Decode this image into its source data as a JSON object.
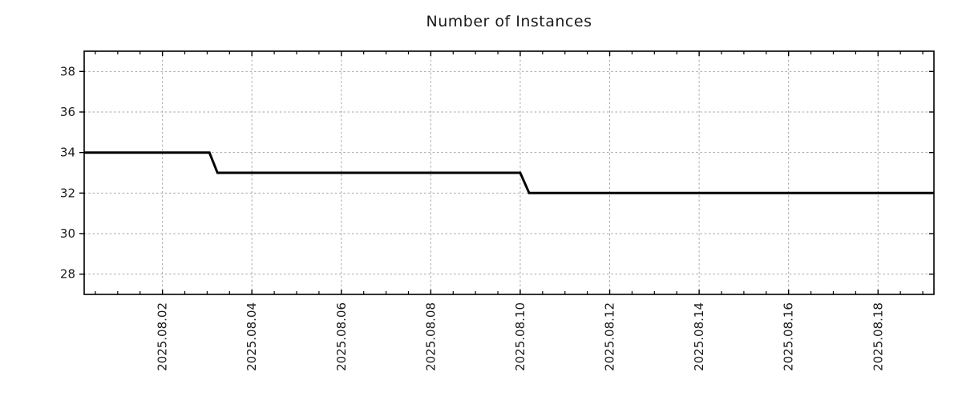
{
  "chart_data": {
    "type": "line",
    "title": "Number of Instances",
    "xlabel": "",
    "ylabel": "",
    "legend": "none",
    "grid": "dashed",
    "colors": {
      "series_line": "#000000",
      "gridline": "#a6a6a6",
      "spine": "#000000",
      "tick": "#000000",
      "label_text": "#1a1a1a"
    },
    "x_unit": "days, integer d = 2025.08.d at 00:00",
    "xlim": [
      0.25,
      19.25
    ],
    "ylim": [
      27,
      39
    ],
    "x_ticks": [
      {
        "value": 2,
        "label": "2025.08.02"
      },
      {
        "value": 4,
        "label": "2025.08.04"
      },
      {
        "value": 6,
        "label": "2025.08.06"
      },
      {
        "value": 8,
        "label": "2025.08.08"
      },
      {
        "value": 10,
        "label": "2025.08.10"
      },
      {
        "value": 12,
        "label": "2025.08.12"
      },
      {
        "value": 14,
        "label": "2025.08.14"
      },
      {
        "value": 16,
        "label": "2025.08.16"
      },
      {
        "value": 18,
        "label": "2025.08.18"
      }
    ],
    "x_minor_step": 0.5,
    "y_ticks": [
      28,
      30,
      32,
      34,
      36,
      38
    ],
    "series": [
      {
        "name": "instances",
        "points": [
          [
            0.25,
            34
          ],
          [
            3.05,
            34
          ],
          [
            3.23,
            33
          ],
          [
            10.0,
            33
          ],
          [
            10.2,
            32
          ],
          [
            19.25,
            32
          ]
        ]
      }
    ]
  }
}
